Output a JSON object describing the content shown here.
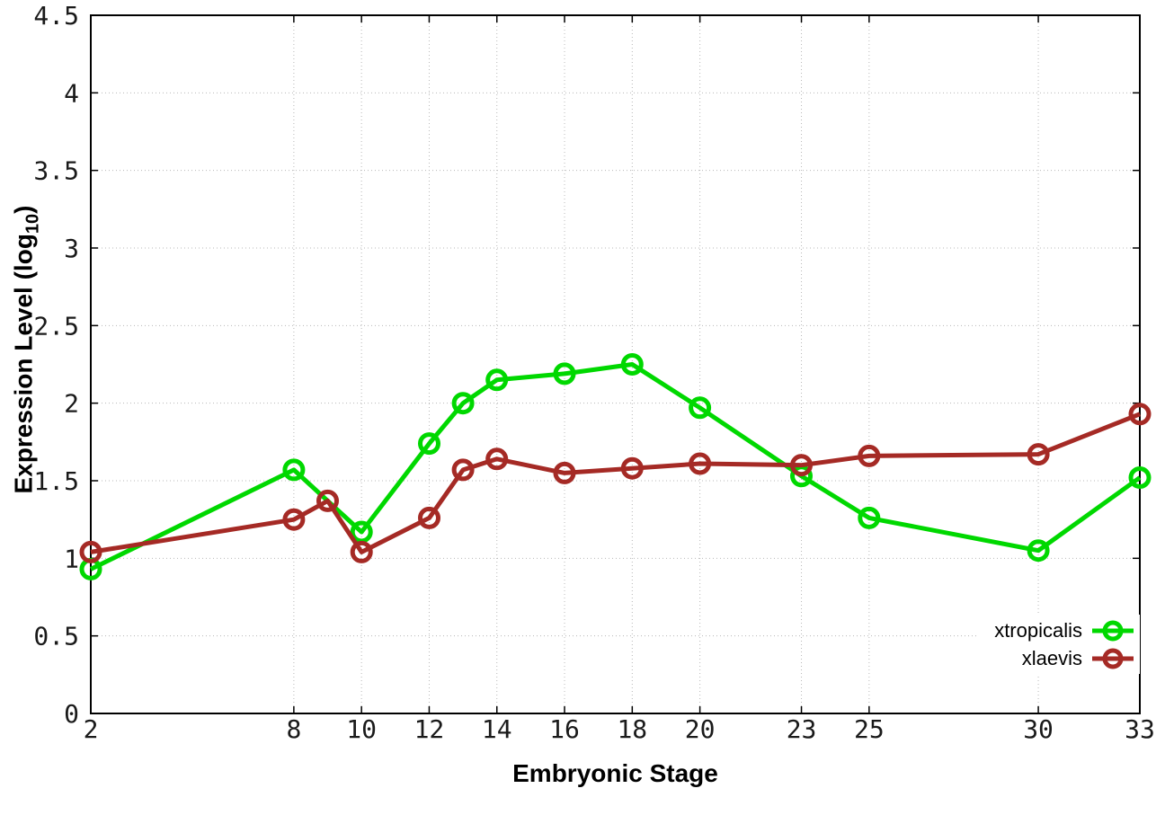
{
  "chart_data": {
    "type": "line",
    "title": "",
    "xlabel": "Embryonic Stage",
    "ylabel": "Expression Level (log10)",
    "ylabel_main": "Expression Level (log",
    "ylabel_sub": "10",
    "ylabel_end": ")",
    "xlim": [
      2,
      33
    ],
    "ylim": [
      0,
      4.5
    ],
    "x_ticks": [
      2,
      8,
      10,
      12,
      14,
      16,
      18,
      20,
      23,
      25,
      30,
      33
    ],
    "x_tick_labels": [
      "2",
      "8",
      "10",
      "12",
      "14",
      "16",
      "18",
      "20",
      "23",
      "25",
      "30",
      "33"
    ],
    "y_ticks": [
      0,
      0.5,
      1,
      1.5,
      2,
      2.5,
      3,
      3.5,
      4,
      4.5
    ],
    "y_tick_labels": [
      "0",
      "0.5",
      "1",
      "1.5",
      "2",
      "2.5",
      "3",
      "3.5",
      "4",
      "4.5"
    ],
    "grid": true,
    "grid_style": "dotted",
    "legend_position": "inside-bottom-right",
    "legend_opaque": true,
    "axis_color": "#000000",
    "grid_color": "#b8b8b8",
    "tick_label_color": "#1a1a1a",
    "series": [
      {
        "name": "xtropicalis",
        "color": "#00d800",
        "marker": "open-circle",
        "line_width": 5,
        "points": [
          [
            2,
            0.93
          ],
          [
            8,
            1.57
          ],
          [
            10,
            1.17
          ],
          [
            12,
            1.74
          ],
          [
            13,
            2.0
          ],
          [
            14,
            2.15
          ],
          [
            16,
            2.19
          ],
          [
            18,
            2.25
          ],
          [
            20,
            1.97
          ],
          [
            23,
            1.53
          ],
          [
            25,
            1.26
          ],
          [
            30,
            1.05
          ],
          [
            33,
            1.52
          ]
        ]
      },
      {
        "name": "xlaevis",
        "color": "#a52a25",
        "marker": "open-circle",
        "line_width": 5,
        "points": [
          [
            2,
            1.04
          ],
          [
            8,
            1.25
          ],
          [
            9,
            1.37
          ],
          [
            10,
            1.04
          ],
          [
            12,
            1.26
          ],
          [
            13,
            1.57
          ],
          [
            14,
            1.64
          ],
          [
            16,
            1.55
          ],
          [
            18,
            1.58
          ],
          [
            20,
            1.61
          ],
          [
            23,
            1.6
          ],
          [
            25,
            1.66
          ],
          [
            30,
            1.67
          ],
          [
            33,
            1.93
          ]
        ]
      }
    ]
  }
}
